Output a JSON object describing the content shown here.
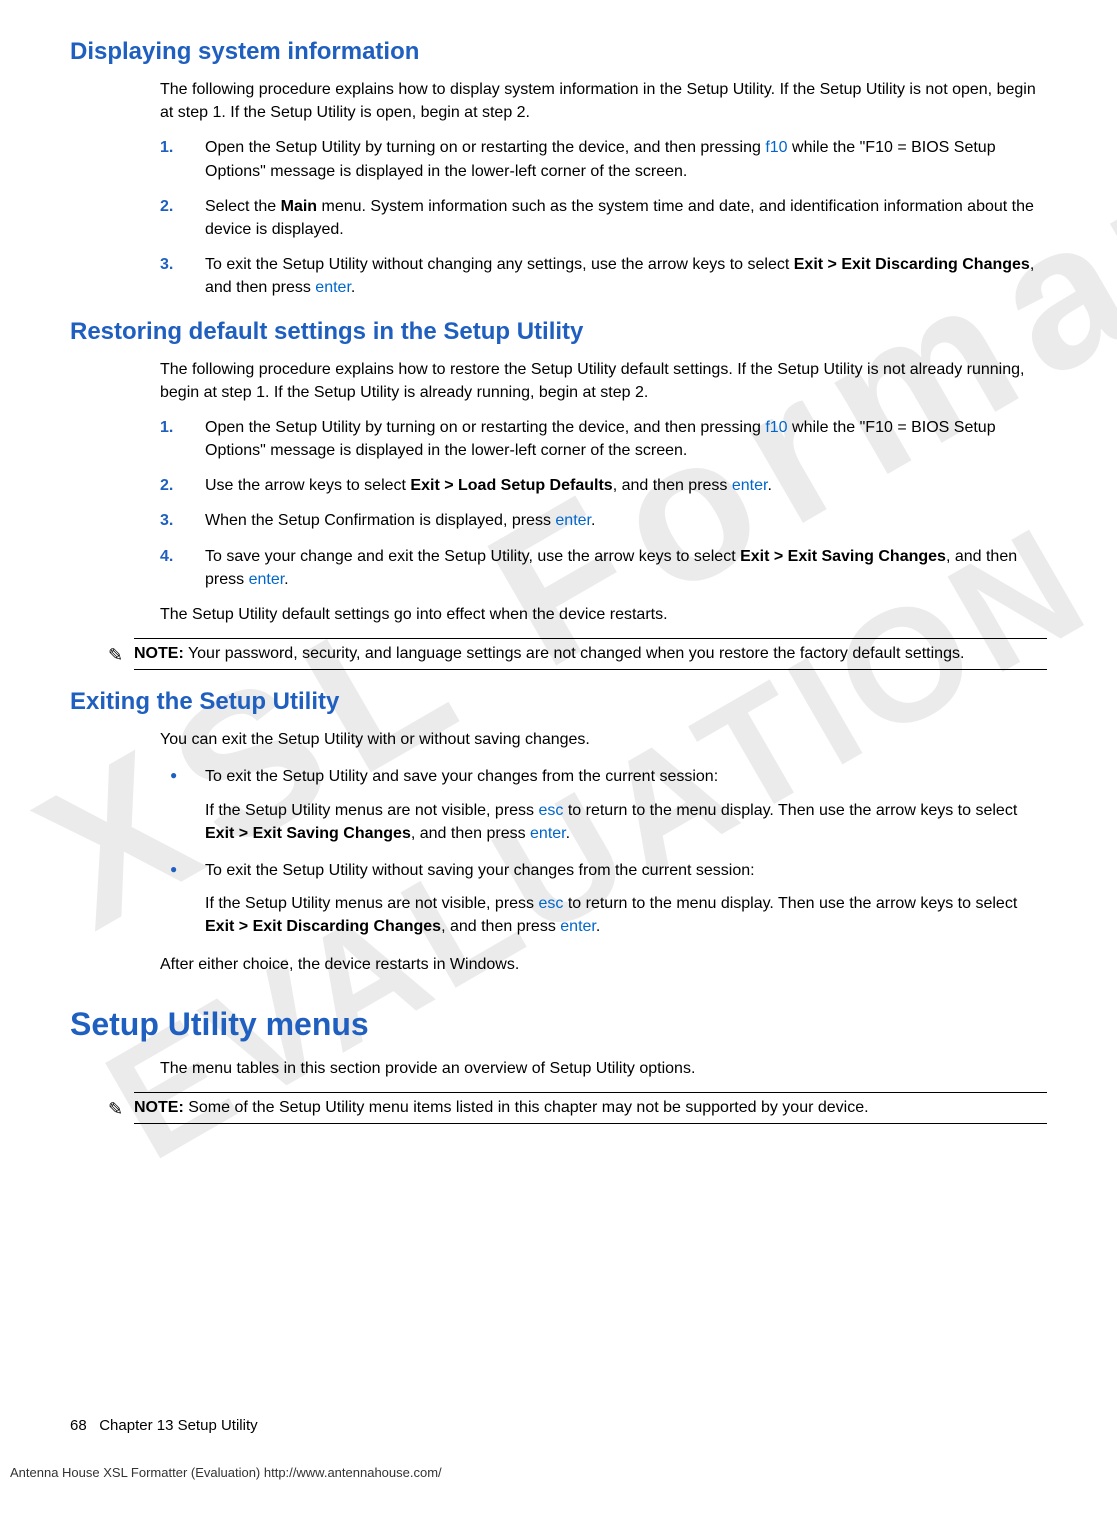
{
  "colors": {
    "heading": "#1f5fbf",
    "link": "#0066cc",
    "bullet": "#1f5fbf",
    "number": "#1f5fbf",
    "text": "#000000"
  },
  "watermark": {
    "line1": "XSL Formatter",
    "line2": "EVALUATION"
  },
  "sections": [
    {
      "id": "s1",
      "title": "Displaying system information",
      "intro": "The following procedure explains how to display system information in the Setup Utility. If the Setup Utility is not open, begin at step 1. If the Setup Utility is open, begin at step 2.",
      "steps": [
        {
          "n": "1.",
          "pre": "Open the Setup Utility by turning on or restarting the device, and then pressing ",
          "key": "f10",
          "post": " while the \"F10 = BIOS Setup Options\" message is displayed in the lower-left corner of the screen."
        },
        {
          "n": "2.",
          "pre": "Select the ",
          "bold": "Main",
          "post": " menu. System information such as the system time and date, and identification information about the device is displayed."
        },
        {
          "n": "3.",
          "pre": "To exit the Setup Utility without changing any settings, use the arrow keys to select ",
          "bold": "Exit > Exit Discarding Changes",
          "post2": ", and then press ",
          "key2": "enter",
          "post3": "."
        }
      ]
    },
    {
      "id": "s2",
      "title": "Restoring default settings in the Setup Utility",
      "intro": "The following procedure explains how to restore the Setup Utility default settings. If the Setup Utility is not already running, begin at step 1. If the Setup Utility is already running, begin at step 2.",
      "steps": [
        {
          "n": "1.",
          "pre": "Open the Setup Utility by turning on or restarting the device, and then pressing ",
          "key": "f10",
          "post": " while the \"F10 = BIOS Setup Options\" message is displayed in the lower-left corner of the screen."
        },
        {
          "n": "2.",
          "pre": "Use the arrow keys to select ",
          "bold": "Exit > Load Setup Defaults",
          "post2": ", and then press ",
          "key2": "enter",
          "post3": "."
        },
        {
          "n": "3.",
          "pre": "When the Setup Confirmation is displayed, press ",
          "key": "enter",
          "post": "."
        },
        {
          "n": "4.",
          "pre": "To save your change and exit the Setup Utility, use the arrow keys to select ",
          "bold": "Exit > Exit Saving Changes",
          "post2": ", and then press ",
          "key2": "enter",
          "post3": "."
        }
      ],
      "afterSteps": "The Setup Utility default settings go into effect when the device restarts.",
      "note": {
        "label": "NOTE:",
        "text": "   Your password, security, and language settings are not changed when you restore the factory default settings."
      }
    },
    {
      "id": "s3",
      "title": "Exiting the Setup Utility",
      "intro": "You can exit the Setup Utility with or without saving changes.",
      "bullets": [
        {
          "lead": "To exit the Setup Utility and save your changes from the current session:",
          "body_pre": "If the Setup Utility menus are not visible, press ",
          "key1": "esc",
          "body_mid": " to return to the menu display. Then use the arrow keys to select ",
          "bold": "Exit > Exit Saving Changes",
          "body_mid2": ", and then press ",
          "key2": "enter",
          "body_post": "."
        },
        {
          "lead": "To exit the Setup Utility without saving your changes from the current session:",
          "body_pre": "If the Setup Utility menus are not visible, press ",
          "key1": "esc",
          "body_mid": " to return to the menu display. Then use the arrow keys to select ",
          "bold": "Exit > Exit Discarding Changes",
          "body_mid2": ", and then press ",
          "key2": "enter",
          "body_post": "."
        }
      ],
      "afterBullets": "After either choice, the device restarts in Windows."
    }
  ],
  "major": {
    "title": "Setup Utility menus",
    "intro": "The menu tables in this section provide an overview of Setup Utility options.",
    "note": {
      "label": "NOTE:",
      "text": "   Some of the Setup Utility menu items listed in this chapter may not be supported by your device."
    }
  },
  "footer": {
    "pageNumber": "68",
    "chapter": "Chapter 13   Setup Utility",
    "eval": "Antenna House XSL Formatter (Evaluation)  http://www.antennahouse.com/"
  }
}
